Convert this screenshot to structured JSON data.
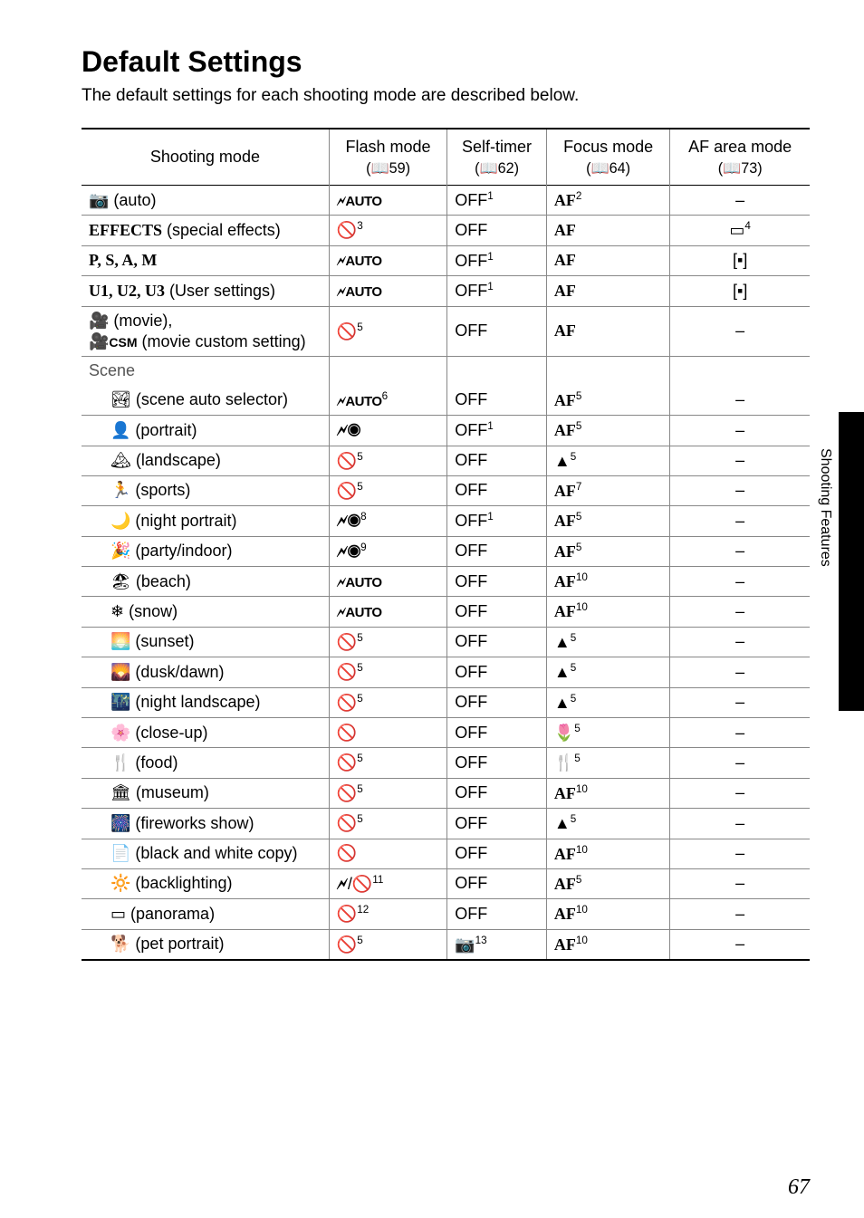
{
  "title": "Default Settings",
  "intro": "The default settings for each shooting mode are described below.",
  "sidetext": "Shooting Features",
  "pagenum": "67",
  "headers": {
    "mode": "Shooting mode",
    "flash": "Flash mode",
    "flash_ref": "(📖59)",
    "timer": "Self-timer",
    "timer_ref": "(📖62)",
    "focus": "Focus mode",
    "focus_ref": "(📖64)",
    "afarea": "AF area mode",
    "afarea_ref": "(📖73)"
  },
  "glyphs": {
    "sauto": "🗲AUTO",
    "noflash": "🚫",
    "redeye": "🗲👁",
    "redeye_slow": "🗲👁",
    "flash": "🗲",
    "af": "AF",
    "mountain": "▲",
    "macro": "🌷",
    "mf": "🍴",
    "off": "OFF",
    "dash": "–",
    "wide": "▭",
    "normal": "[▪]",
    "pet_timer": "📷"
  },
  "rows": [
    {
      "mode_icon": "📷",
      "mode": " (auto)",
      "flash": "sauto",
      "flash_sup": "",
      "timer": "OFF",
      "timer_sup": "1",
      "focus": "AF",
      "focus_sup": "2",
      "af": "–",
      "af_sup": "",
      "bold": true
    },
    {
      "mode_icon": "",
      "mode": "EFFECTS (special effects)",
      "flash": "noflash",
      "flash_sup": "3",
      "timer": "OFF",
      "timer_sup": "",
      "focus": "AF",
      "focus_sup": "",
      "af": "wide",
      "af_sup": "4",
      "bold": true,
      "effects": true
    },
    {
      "mode_icon": "",
      "mode": "P, S, A, M",
      "flash": "sauto",
      "flash_sup": "",
      "timer": "OFF",
      "timer_sup": "1",
      "focus": "AF",
      "focus_sup": "",
      "af": "normal",
      "af_sup": "",
      "bold": true,
      "serif": true
    },
    {
      "mode_icon": "",
      "mode": "U1, U2, U3 (User settings)",
      "flash": "sauto",
      "flash_sup": "",
      "timer": "OFF",
      "timer_sup": "1",
      "focus": "AF",
      "focus_sup": "",
      "af": "normal",
      "af_sup": "",
      "bold": true,
      "serif": true,
      "u_row": true
    },
    {
      "mode_icon": "🎥",
      "mode": " (movie), 🎥CSM (movie custom setting)",
      "flash": "noflash",
      "flash_sup": "5",
      "timer": "OFF",
      "timer_sup": "",
      "focus": "AF",
      "focus_sup": "",
      "af": "–",
      "af_sup": "",
      "movie": true
    }
  ],
  "scene_label": "Scene",
  "scene_rows": [
    {
      "icon": "🏞",
      "name": " (scene auto selector)",
      "flash": "sauto",
      "flash_sup": "6",
      "timer": "OFF",
      "timer_sup": "",
      "focus": "AF",
      "focus_sup": "5",
      "af": "–"
    },
    {
      "icon": "👤",
      "name": " (portrait)",
      "flash": "redeye",
      "flash_sup": "",
      "timer": "OFF",
      "timer_sup": "1",
      "focus": "AF",
      "focus_sup": "5",
      "af": "–"
    },
    {
      "icon": "🏔",
      "name": " (landscape)",
      "flash": "noflash",
      "flash_sup": "5",
      "timer": "OFF",
      "timer_sup": "",
      "focus": "mountain",
      "focus_sup": "5",
      "af": "–"
    },
    {
      "icon": "🏃",
      "name": " (sports)",
      "flash": "noflash",
      "flash_sup": "5",
      "timer": "OFF",
      "timer_sup": "",
      "focus": "AF",
      "focus_sup": "7",
      "af": "–"
    },
    {
      "icon": "🌙",
      "name": " (night portrait)",
      "flash": "redeye_slow",
      "flash_sup": "8",
      "timer": "OFF",
      "timer_sup": "1",
      "focus": "AF",
      "focus_sup": "5",
      "af": "–"
    },
    {
      "icon": "🎉",
      "name": " (party/indoor)",
      "flash": "redeye_slow",
      "flash_sup": "9",
      "timer": "OFF",
      "timer_sup": "",
      "focus": "AF",
      "focus_sup": "5",
      "af": "–"
    },
    {
      "icon": "🏖",
      "name": " (beach)",
      "flash": "sauto",
      "flash_sup": "",
      "timer": "OFF",
      "timer_sup": "",
      "focus": "AF",
      "focus_sup": "10",
      "af": "–"
    },
    {
      "icon": "❄",
      "name": " (snow)",
      "flash": "sauto",
      "flash_sup": "",
      "timer": "OFF",
      "timer_sup": "",
      "focus": "AF",
      "focus_sup": "10",
      "af": "–"
    },
    {
      "icon": "🌅",
      "name": " (sunset)",
      "flash": "noflash",
      "flash_sup": "5",
      "timer": "OFF",
      "timer_sup": "",
      "focus": "mountain",
      "focus_sup": "5",
      "af": "–"
    },
    {
      "icon": "🌄",
      "name": " (dusk/dawn)",
      "flash": "noflash",
      "flash_sup": "5",
      "timer": "OFF",
      "timer_sup": "",
      "focus": "mountain",
      "focus_sup": "5",
      "af": "–"
    },
    {
      "icon": "🌃",
      "name": " (night landscape)",
      "flash": "noflash",
      "flash_sup": "5",
      "timer": "OFF",
      "timer_sup": "",
      "focus": "mountain",
      "focus_sup": "5",
      "af": "–"
    },
    {
      "icon": "🌸",
      "name": " (close-up)",
      "flash": "noflash",
      "flash_sup": "",
      "timer": "OFF",
      "timer_sup": "",
      "focus": "macro",
      "focus_sup": "5",
      "af": "–"
    },
    {
      "icon": "🍴",
      "name": " (food)",
      "flash": "noflash",
      "flash_sup": "5",
      "timer": "OFF",
      "timer_sup": "",
      "focus": "mf",
      "focus_sup": "5",
      "af": "–"
    },
    {
      "icon": "🏛",
      "name": " (museum)",
      "flash": "noflash",
      "flash_sup": "5",
      "timer": "OFF",
      "timer_sup": "",
      "focus": "AF",
      "focus_sup": "10",
      "af": "–"
    },
    {
      "icon": "🎆",
      "name": " (fireworks show)",
      "flash": "noflash",
      "flash_sup": "5",
      "timer": "OFF",
      "timer_sup": "",
      "focus": "mountain",
      "focus_sup": "5",
      "af": "–"
    },
    {
      "icon": "📄",
      "name": " (black and white copy)",
      "flash": "noflash",
      "flash_sup": "",
      "timer": "OFF",
      "timer_sup": "",
      "focus": "AF",
      "focus_sup": "10",
      "af": "–"
    },
    {
      "icon": "🔆",
      "name": " (backlighting)",
      "flash": "flash_noflash",
      "flash_sup": "11",
      "timer": "OFF",
      "timer_sup": "",
      "focus": "AF",
      "focus_sup": "5",
      "af": "–"
    },
    {
      "icon": "▭",
      "name": " (panorama)",
      "flash": "noflash",
      "flash_sup": "12",
      "timer": "OFF",
      "timer_sup": "",
      "focus": "AF",
      "focus_sup": "10",
      "af": "–"
    },
    {
      "icon": "🐕",
      "name": " (pet portrait)",
      "flash": "noflash",
      "flash_sup": "5",
      "timer": "pet_timer",
      "timer_sup": "13",
      "focus": "AF",
      "focus_sup": "10",
      "af": "–"
    }
  ]
}
